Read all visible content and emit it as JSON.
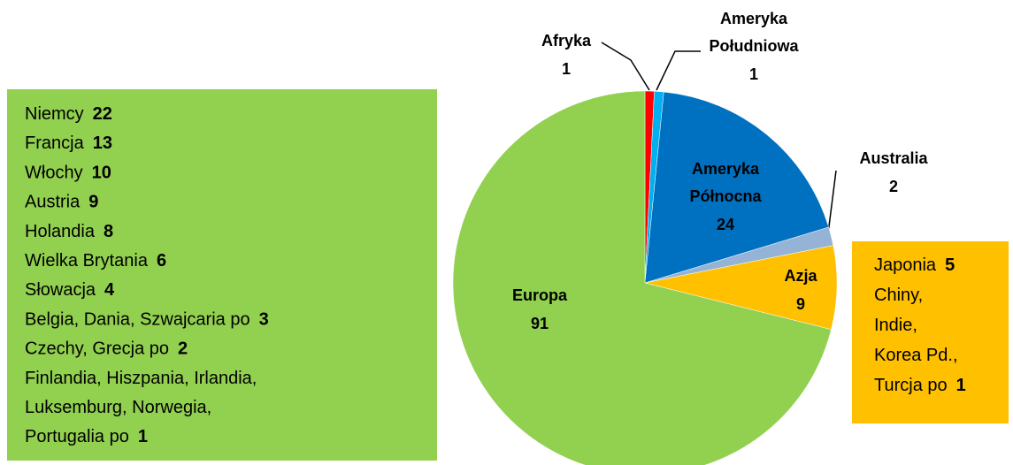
{
  "chart_data": {
    "type": "pie",
    "categories": [
      "Afryka",
      "Ameryka Południowa",
      "Ameryka Północna",
      "Australia",
      "Azja",
      "Europa"
    ],
    "values": [
      1,
      1,
      24,
      2,
      9,
      91
    ],
    "colors": [
      "#ff0000",
      "#00b0f0",
      "#0070c0",
      "#95b3d7",
      "#ffc000",
      "#92d050"
    ]
  },
  "left_box": {
    "lines": [
      {
        "text": "Niemcy",
        "value": "22"
      },
      {
        "text": "Francja",
        "value": "13"
      },
      {
        "text": "Włochy",
        "value": "10"
      },
      {
        "text": "Austria",
        "value": "9"
      },
      {
        "text": "Holandia",
        "value": "8"
      },
      {
        "text": "Wielka Brytania",
        "value": "6"
      },
      {
        "text": "Słowacja",
        "value": "4"
      },
      {
        "text": "Belgia, Dania, Szwajcaria po",
        "value": "3"
      },
      {
        "text": "Czechy, Grecja po",
        "value": "2"
      },
      {
        "text": "Finlandia, Hiszpania, Irlandia,"
      },
      {
        "text": "Luksemburg, Norwegia,"
      },
      {
        "text": "Portugalia    po",
        "value": "1"
      }
    ]
  },
  "right_box": {
    "lines": [
      {
        "text": "Japonia",
        "value": "5"
      },
      {
        "text": "Chiny,"
      },
      {
        "text": "Indie,"
      },
      {
        "text": "Korea Pd.,"
      },
      {
        "text": "Turcja po",
        "value": "1"
      }
    ]
  }
}
